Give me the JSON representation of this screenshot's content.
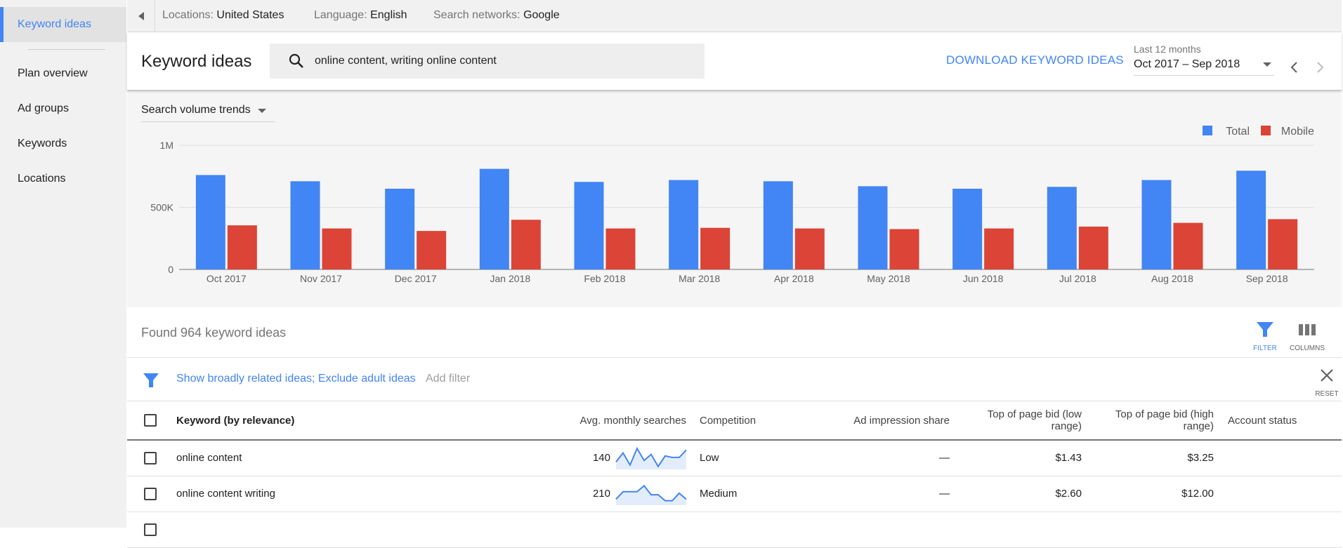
{
  "sidebar": {
    "items": [
      {
        "label": "Keyword ideas",
        "active": true
      },
      {
        "label": "Plan overview"
      },
      {
        "label": "Ad groups"
      },
      {
        "label": "Keywords"
      },
      {
        "label": "Locations"
      }
    ]
  },
  "topbar": {
    "locations_label": "Locations:",
    "locations_value": "United States",
    "language_label": "Language:",
    "language_value": "English",
    "networks_label": "Search networks:",
    "networks_value": "Google"
  },
  "header": {
    "title": "Keyword ideas",
    "search_value": "online content, writing online content",
    "download_label": "DOWNLOAD KEYWORD IDEAS",
    "range_label": "Last 12 months",
    "range_value": "Oct 2017 – Sep 2018"
  },
  "chart_controls": {
    "trend_select_label": "Search volume trends"
  },
  "chart_data": {
    "type": "bar",
    "categories": [
      "Oct 2017",
      "Nov 2017",
      "Dec 2017",
      "Jan 2018",
      "Feb 2018",
      "Mar 2018",
      "Apr 2018",
      "May 2018",
      "Jun 2018",
      "Jul 2018",
      "Aug 2018",
      "Sep 2018"
    ],
    "series": [
      {
        "name": "Total",
        "color": "#4285f4",
        "values": [
          760000,
          710000,
          650000,
          810000,
          705000,
          720000,
          710000,
          670000,
          650000,
          665000,
          720000,
          795000
        ]
      },
      {
        "name": "Mobile",
        "color": "#db4437",
        "values": [
          355000,
          330000,
          310000,
          400000,
          330000,
          335000,
          330000,
          325000,
          330000,
          345000,
          375000,
          405000
        ]
      }
    ],
    "yticks": [
      {
        "value": 0,
        "label": "0"
      },
      {
        "value": 500000,
        "label": "500K"
      },
      {
        "value": 1000000,
        "label": "1M"
      }
    ],
    "ylim": [
      0,
      1000000
    ],
    "legend_position": "top-right",
    "grid": true
  },
  "results": {
    "found_text": "Found 964 keyword ideas",
    "filter_btn_label": "FILTER",
    "columns_btn_label": "COLUMNS",
    "filter_text": "Show broadly related ideas; Exclude adult ideas",
    "add_filter_label": "Add filter",
    "reset_label": "RESET"
  },
  "table": {
    "headers": {
      "keyword": "Keyword (by relevance)",
      "avg": "Avg. monthly searches",
      "competition": "Competition",
      "impression": "Ad impression share",
      "bid_low_1": "Top of page bid (low",
      "bid_low_2": "range)",
      "bid_high_1": "Top of page bid (high",
      "bid_high_2": "range)",
      "status": "Account status"
    },
    "rows": [
      {
        "keyword": "online content",
        "avg": "140",
        "competition": "Low",
        "impression": "—",
        "bid_low": "$1.43",
        "bid_high": "$3.25",
        "trend": [
          5,
          11,
          3,
          14,
          6,
          10,
          2,
          9,
          8,
          8,
          13
        ]
      },
      {
        "keyword": "online content writing",
        "avg": "210",
        "competition": "Medium",
        "impression": "—",
        "bid_low": "$2.60",
        "bid_high": "$12.00",
        "trend": [
          4,
          9,
          9,
          9,
          13,
          7,
          7,
          3,
          3,
          8,
          4
        ]
      }
    ]
  }
}
